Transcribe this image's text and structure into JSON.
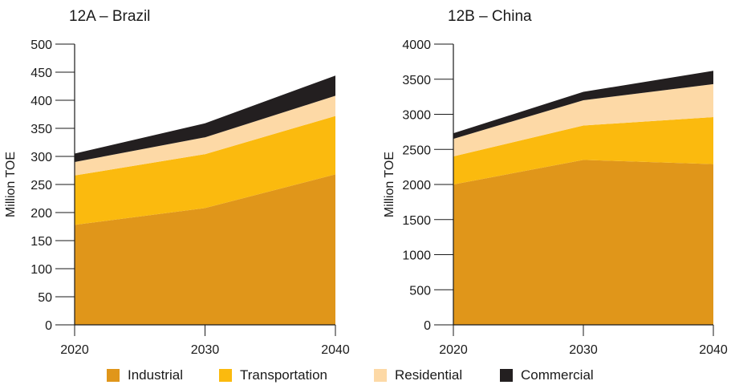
{
  "legend": [
    {
      "name": "Industrial",
      "color": "#E0961A"
    },
    {
      "name": "Transportation",
      "color": "#FBBA0E"
    },
    {
      "name": "Residential",
      "color": "#FDD9A6"
    },
    {
      "name": "Commercial",
      "color": "#231F20"
    }
  ],
  "chart_data": [
    {
      "type": "area",
      "stacked": true,
      "title": "12A – Brazil",
      "ylabel": "Million TOE",
      "xlabel": "",
      "x": [
        2020,
        2030,
        2040
      ],
      "ylim": [
        0,
        500
      ],
      "yticks": [
        0,
        50,
        100,
        150,
        200,
        250,
        300,
        350,
        400,
        450,
        500
      ],
      "series": [
        {
          "name": "Industrial",
          "values": [
            178,
            208,
            268
          ]
        },
        {
          "name": "Transportation",
          "values": [
            88,
            96,
            104
          ]
        },
        {
          "name": "Residential",
          "values": [
            24,
            30,
            36
          ]
        },
        {
          "name": "Commercial",
          "values": [
            15,
            25,
            36
          ]
        }
      ]
    },
    {
      "type": "area",
      "stacked": true,
      "title": "12B – China",
      "ylabel": "Million TOE",
      "xlabel": "",
      "x": [
        2020,
        2030,
        2040
      ],
      "ylim": [
        0,
        4000
      ],
      "yticks": [
        0,
        500,
        1000,
        1500,
        2000,
        2500,
        3000,
        3500,
        4000
      ],
      "series": [
        {
          "name": "Industrial",
          "values": [
            2000,
            2350,
            2290
          ]
        },
        {
          "name": "Transportation",
          "values": [
            400,
            490,
            670
          ]
        },
        {
          "name": "Residential",
          "values": [
            250,
            360,
            470
          ]
        },
        {
          "name": "Commercial",
          "values": [
            80,
            120,
            190
          ]
        }
      ]
    }
  ]
}
